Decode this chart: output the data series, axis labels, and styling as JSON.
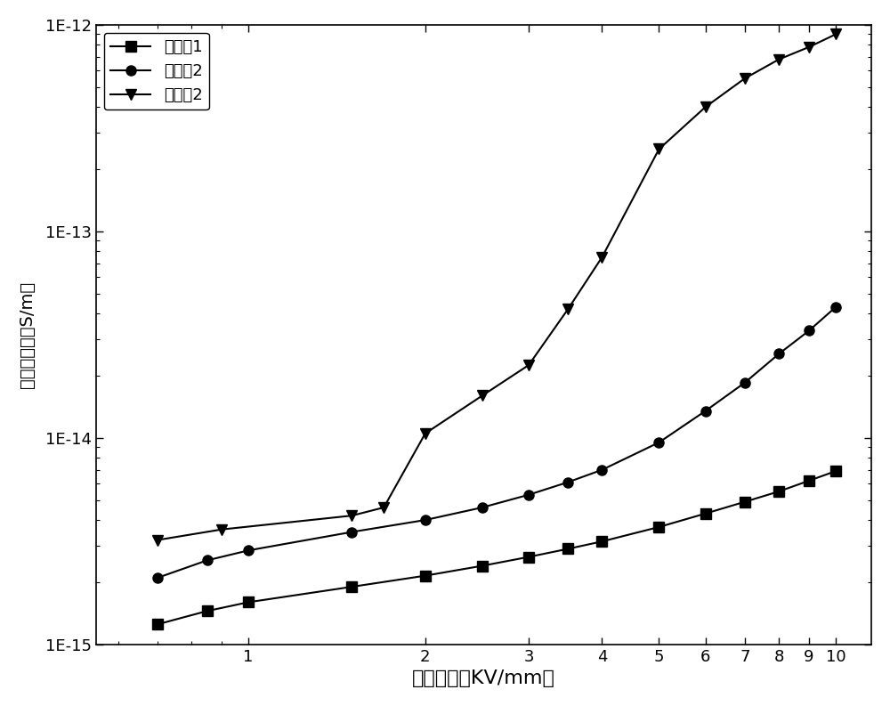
{
  "title": "",
  "xlabel": "电场强度（KV/mm）",
  "ylabel": "体积电导率（S/m）",
  "legend_labels": [
    "对比例1",
    "对比例2",
    "实施例2"
  ],
  "xlim": [
    0.55,
    11.5
  ],
  "ylim": [
    1e-15,
    1e-12
  ],
  "background_color": "#ffffff",
  "line_color": "#000000",
  "series1_x": [
    0.7,
    0.85,
    1.0,
    1.5,
    2.0,
    2.5,
    3.0,
    3.5,
    4.0,
    5.0,
    6.0,
    7.0,
    8.0,
    9.0,
    10.0
  ],
  "series1_y": [
    1.25e-15,
    1.45e-15,
    1.6e-15,
    1.9e-15,
    2.15e-15,
    2.4e-15,
    2.65e-15,
    2.9e-15,
    3.15e-15,
    3.7e-15,
    4.3e-15,
    4.9e-15,
    5.5e-15,
    6.2e-15,
    6.9e-15
  ],
  "series2_x": [
    0.7,
    0.85,
    1.0,
    1.5,
    2.0,
    2.5,
    3.0,
    3.5,
    4.0,
    5.0,
    6.0,
    7.0,
    8.0,
    9.0,
    10.0
  ],
  "series2_y": [
    2.1e-15,
    2.55e-15,
    2.85e-15,
    3.5e-15,
    4e-15,
    4.6e-15,
    5.3e-15,
    6.1e-15,
    7e-15,
    9.5e-15,
    1.35e-14,
    1.85e-14,
    2.55e-14,
    3.3e-14,
    4.3e-14
  ],
  "series3_x": [
    0.7,
    0.9,
    1.5,
    1.7,
    2.0,
    2.5,
    3.0,
    3.5,
    4.0,
    5.0,
    6.0,
    7.0,
    8.0,
    9.0,
    10.0
  ],
  "series3_y": [
    3.2e-15,
    3.6e-15,
    4.2e-15,
    4.6e-15,
    1.05e-14,
    1.6e-14,
    2.25e-14,
    4.2e-14,
    7.5e-14,
    2.5e-13,
    4e-13,
    5.5e-13,
    6.8e-13,
    7.8e-13,
    9e-13
  ],
  "marker1": "s",
  "marker2": "o",
  "marker3": "v",
  "markersize": 8,
  "linewidth": 1.5,
  "xlabel_fontsize": 16,
  "ylabel_fontsize": 14,
  "tick_fontsize": 13,
  "legend_fontsize": 13
}
